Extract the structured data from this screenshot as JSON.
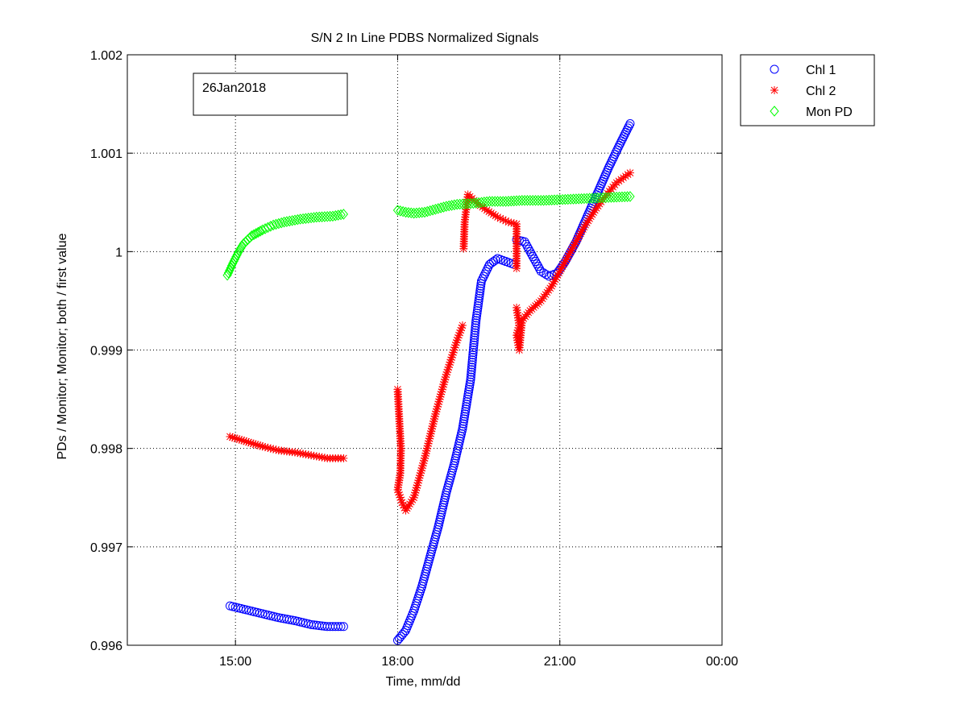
{
  "chart_data": {
    "type": "scatter",
    "title": "S/N 2 In Line PDBS Normalized Signals",
    "xlabel": "Time, mm/dd",
    "ylabel": "PDs / Monitor; Monitor; both / first value",
    "annotation": "26Jan2018",
    "x_unit": "hours of day (26Jan2018)",
    "xlim": [
      13.0,
      24.0
    ],
    "ylim": [
      0.996,
      1.002
    ],
    "x_ticks": [
      15,
      18,
      21,
      24
    ],
    "x_tick_labels": [
      "15:00",
      "18:00",
      "21:00",
      "00:00"
    ],
    "y_ticks": [
      0.996,
      0.997,
      0.998,
      0.999,
      1.0,
      1.001,
      1.002
    ],
    "y_tick_labels": [
      "0.996",
      "0.997",
      "0.998",
      "0.999",
      "1",
      "1.001",
      "1.002"
    ],
    "grid": true,
    "legend_position": "outside-top-right",
    "series": [
      {
        "name": "Chl 1",
        "marker": "circle",
        "color": "#0000ff",
        "segments": [
          [
            [
              14.9,
              0.9964
            ],
            [
              15.2,
              0.99636
            ],
            [
              15.5,
              0.99632
            ],
            [
              15.8,
              0.99628
            ],
            [
              16.1,
              0.99625
            ],
            [
              16.4,
              0.99621
            ],
            [
              16.7,
              0.99619
            ],
            [
              17.0,
              0.99619
            ]
          ],
          [
            [
              18.0,
              0.99605
            ],
            [
              18.15,
              0.99615
            ],
            [
              18.3,
              0.99635
            ],
            [
              18.45,
              0.9966
            ],
            [
              18.6,
              0.9969
            ],
            [
              18.75,
              0.9972
            ],
            [
              18.9,
              0.99755
            ],
            [
              19.05,
              0.99785
            ],
            [
              19.2,
              0.9982
            ],
            [
              19.35,
              0.9987
            ],
            [
              19.45,
              0.9993
            ],
            [
              19.55,
              0.9997
            ],
            [
              19.7,
              0.99987
            ],
            [
              19.85,
              0.99993
            ],
            [
              20.0,
              0.9999
            ],
            [
              20.15,
              0.99987
            ]
          ],
          [
            [
              20.2,
              1.00012
            ],
            [
              20.35,
              1.0001
            ],
            [
              20.5,
              0.99995
            ],
            [
              20.65,
              0.9998
            ],
            [
              20.8,
              0.99975
            ],
            [
              20.95,
              0.99978
            ],
            [
              21.1,
              0.9999
            ],
            [
              21.3,
              1.0001
            ],
            [
              21.5,
              1.00035
            ],
            [
              21.7,
              1.0006
            ],
            [
              21.9,
              1.00085
            ],
            [
              22.1,
              1.00108
            ],
            [
              22.3,
              1.0013
            ]
          ]
        ]
      },
      {
        "name": "Chl 2",
        "marker": "asterisk",
        "color": "#ff0000",
        "segments": [
          [
            [
              14.9,
              0.99812
            ],
            [
              15.2,
              0.99807
            ],
            [
              15.5,
              0.99802
            ],
            [
              15.8,
              0.99798
            ],
            [
              16.1,
              0.99796
            ],
            [
              16.4,
              0.99793
            ],
            [
              16.7,
              0.9979
            ],
            [
              17.0,
              0.9979
            ]
          ],
          [
            [
              18.0,
              0.9986
            ],
            [
              18.02,
              0.9984
            ],
            [
              18.04,
              0.9982
            ],
            [
              18.06,
              0.998
            ],
            [
              18.05,
              0.99775
            ],
            [
              18.0,
              0.99758
            ],
            [
              18.08,
              0.99745
            ],
            [
              18.15,
              0.99737
            ],
            [
              18.3,
              0.9975
            ],
            [
              18.5,
              0.9979
            ],
            [
              18.7,
              0.99835
            ],
            [
              18.9,
              0.99875
            ],
            [
              19.1,
              0.9991
            ],
            [
              19.2,
              0.99925
            ]
          ],
          [
            [
              19.22,
              1.00003
            ],
            [
              19.24,
              1.0003
            ],
            [
              19.3,
              1.00058
            ],
            [
              19.45,
              1.0005
            ],
            [
              19.65,
              1.00042
            ],
            [
              19.85,
              1.00035
            ],
            [
              20.05,
              1.0003
            ],
            [
              20.2,
              1.00028
            ],
            [
              20.2,
              0.99983
            ]
          ],
          [
            [
              20.2,
              0.99943
            ],
            [
              20.25,
              0.99925
            ],
            [
              20.2,
              0.99915
            ],
            [
              20.25,
              0.999
            ],
            [
              20.3,
              0.9993
            ],
            [
              20.45,
              0.9994
            ],
            [
              20.65,
              0.9995
            ],
            [
              20.85,
              0.99965
            ],
            [
              21.05,
              0.99985
            ],
            [
              21.25,
              1.00005
            ],
            [
              21.45,
              1.00025
            ],
            [
              21.65,
              1.00042
            ],
            [
              21.85,
              1.00057
            ],
            [
              22.05,
              1.0007
            ],
            [
              22.3,
              1.0008
            ]
          ]
        ]
      },
      {
        "name": "Mon PD",
        "marker": "diamond",
        "color": "#00ff00",
        "segments": [
          [
            [
              14.85,
              0.99976
            ],
            [
              14.95,
              0.99988
            ],
            [
              15.05,
              0.99999
            ],
            [
              15.15,
              1.00008
            ],
            [
              15.3,
              1.00016
            ],
            [
              15.5,
              1.00022
            ],
            [
              15.7,
              1.00027
            ],
            [
              15.9,
              1.0003
            ],
            [
              16.2,
              1.00033
            ],
            [
              16.5,
              1.00035
            ],
            [
              16.8,
              1.00036
            ],
            [
              17.0,
              1.00038
            ]
          ],
          [
            [
              18.0,
              1.00042
            ],
            [
              18.15,
              1.0004
            ],
            [
              18.3,
              1.00039
            ],
            [
              18.5,
              1.0004
            ],
            [
              18.7,
              1.00043
            ],
            [
              18.9,
              1.00046
            ],
            [
              19.1,
              1.00048
            ],
            [
              19.4,
              1.00049
            ],
            [
              19.7,
              1.00051
            ],
            [
              20.0,
              1.00051
            ],
            [
              20.3,
              1.00052
            ],
            [
              20.7,
              1.00052
            ],
            [
              21.1,
              1.00053
            ],
            [
              21.5,
              1.00054
            ],
            [
              21.9,
              1.00055
            ],
            [
              22.3,
              1.00056
            ]
          ]
        ]
      }
    ]
  }
}
